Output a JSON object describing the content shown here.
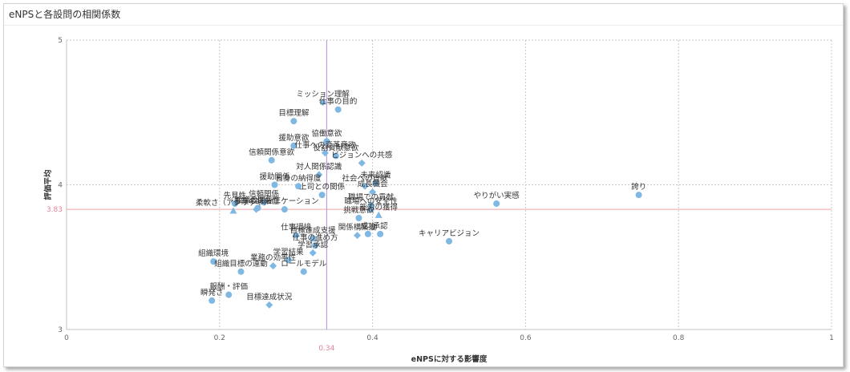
{
  "title": "eNPSと各設問の相関係数",
  "colors": {
    "point": "#7fb8e3",
    "ref_h": "#f5a3a8",
    "ref_v": "#b08fd6",
    "grid": "#c8c8c8"
  },
  "chart_data": {
    "type": "scatter",
    "xlabel": "eNPSに対する影響度",
    "ylabel": "評価平均",
    "xlim": [
      0,
      1
    ],
    "ylim": [
      3,
      5
    ],
    "xticks": [
      "0",
      "0.2",
      "0.4",
      "0.6",
      "0.8",
      "1"
    ],
    "yticks": [
      "3",
      "4",
      "5"
    ],
    "grid": true,
    "reference_lines": {
      "x": 0.34,
      "x_label": "0.34",
      "y": 3.83,
      "y_label": "3.83"
    },
    "points": [
      {
        "label": "誇り",
        "x": 0.748,
        "y": 3.93,
        "shape": "circle"
      },
      {
        "label": "やりがい実感",
        "x": 0.562,
        "y": 3.87,
        "shape": "circle"
      },
      {
        "label": "キャリアビジョン",
        "x": 0.5,
        "y": 3.61,
        "shape": "circle"
      },
      {
        "label": "ミッション理解",
        "x": 0.335,
        "y": 4.57,
        "shape": "diamond"
      },
      {
        "label": "仕事の目的",
        "x": 0.355,
        "y": 4.52,
        "shape": "circle"
      },
      {
        "label": "目標理解",
        "x": 0.297,
        "y": 4.44,
        "shape": "circle"
      },
      {
        "label": "協働意欲",
        "x": 0.34,
        "y": 4.3,
        "shape": "circle"
      },
      {
        "label": "援助意欲",
        "x": 0.297,
        "y": 4.27,
        "shape": "circle"
      },
      {
        "label": "仕事への変革意欲",
        "x": 0.338,
        "y": 4.22,
        "shape": "diamond"
      },
      {
        "label": "役割貢献意欲",
        "x": 0.352,
        "y": 4.2,
        "shape": "circle"
      },
      {
        "label": "信頼関係意欲",
        "x": 0.268,
        "y": 4.17,
        "shape": "circle"
      },
      {
        "label": "ビジョンへの共感",
        "x": 0.386,
        "y": 4.15,
        "shape": "diamond"
      },
      {
        "label": "対人関係認識",
        "x": 0.33,
        "y": 4.07,
        "shape": "diamond"
      },
      {
        "label": "援助関係",
        "x": 0.272,
        "y": 4.0,
        "shape": "circle"
      },
      {
        "label": "自身の納得度",
        "x": 0.303,
        "y": 3.99,
        "shape": "circle"
      },
      {
        "label": "未来認識",
        "x": 0.404,
        "y": 4.01,
        "shape": "circle"
      },
      {
        "label": "社会への貢献",
        "x": 0.39,
        "y": 3.99,
        "shape": "diamond"
      },
      {
        "label": "成長機会",
        "x": 0.4,
        "y": 3.95,
        "shape": "diamond"
      },
      {
        "label": "上司との関係",
        "x": 0.334,
        "y": 3.93,
        "shape": "circle"
      },
      {
        "label": "先見性",
        "x": 0.22,
        "y": 3.87,
        "shape": "circle"
      },
      {
        "label": "信頼関係",
        "x": 0.258,
        "y": 3.88,
        "shape": "circle"
      },
      {
        "label": "柔軟さ（アジリティ）",
        "x": 0.218,
        "y": 3.82,
        "shape": "triangle"
      },
      {
        "label": "事業の将来性",
        "x": 0.248,
        "y": 3.83,
        "shape": "diamond"
      },
      {
        "label": "組織の関係性",
        "x": 0.25,
        "y": 3.84,
        "shape": "circle"
      },
      {
        "label": "コミュニケーション",
        "x": 0.285,
        "y": 3.83,
        "shape": "circle"
      },
      {
        "label": "職場での貢献",
        "x": 0.398,
        "y": 3.86,
        "shape": "circle"
      },
      {
        "label": "職場への安全性",
        "x": 0.398,
        "y": 3.83,
        "shape": "circle"
      },
      {
        "label": "能力の獲得",
        "x": 0.408,
        "y": 3.79,
        "shape": "triangle"
      },
      {
        "label": "挑戦意欲",
        "x": 0.382,
        "y": 3.77,
        "shape": "circle"
      },
      {
        "label": "関係構築度",
        "x": 0.38,
        "y": 3.65,
        "shape": "diamond"
      },
      {
        "label": "成功",
        "x": 0.394,
        "y": 3.66,
        "shape": "circle"
      },
      {
        "label": "承認",
        "x": 0.41,
        "y": 3.66,
        "shape": "circle"
      },
      {
        "label": "仕事環境",
        "x": 0.3,
        "y": 3.65,
        "shape": "circle"
      },
      {
        "label": "目標達成支援",
        "x": 0.322,
        "y": 3.63,
        "shape": "circle"
      },
      {
        "label": "仕事の進め方",
        "x": 0.325,
        "y": 3.58,
        "shape": "circle"
      },
      {
        "label": "学習承認",
        "x": 0.322,
        "y": 3.53,
        "shape": "diamond"
      },
      {
        "label": "学習結果",
        "x": 0.29,
        "y": 3.48,
        "shape": "circle"
      },
      {
        "label": "業務の効率性",
        "x": 0.27,
        "y": 3.44,
        "shape": "diamond"
      },
      {
        "label": "ロールモデル",
        "x": 0.31,
        "y": 3.4,
        "shape": "circle"
      },
      {
        "label": "組織環境",
        "x": 0.192,
        "y": 3.47,
        "shape": "circle"
      },
      {
        "label": "組織目標の運動",
        "x": 0.228,
        "y": 3.4,
        "shape": "circle"
      },
      {
        "label": "報酬・評価",
        "x": 0.212,
        "y": 3.24,
        "shape": "circle"
      },
      {
        "label": "瞬発さ",
        "x": 0.19,
        "y": 3.2,
        "shape": "circle"
      },
      {
        "label": "目標達成状況",
        "x": 0.265,
        "y": 3.17,
        "shape": "diamond"
      }
    ]
  }
}
